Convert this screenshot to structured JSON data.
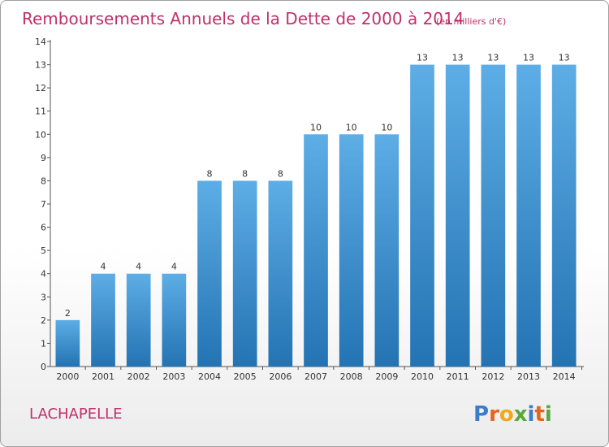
{
  "chart_data": {
    "type": "bar",
    "title": "Remboursements Annuels de la Dette de 2000 à 2014",
    "subtitle": "(en milliers d'€)",
    "categories": [
      "2000",
      "2001",
      "2002",
      "2003",
      "2004",
      "2005",
      "2006",
      "2007",
      "2008",
      "2009",
      "2010",
      "2011",
      "2012",
      "2013",
      "2014"
    ],
    "values": [
      2,
      4,
      4,
      4,
      8,
      8,
      8,
      10,
      10,
      10,
      13,
      13,
      13,
      13,
      13
    ],
    "data_labels": [
      "2",
      "4",
      "4",
      "4",
      "8",
      "8",
      "8",
      "10",
      "10",
      "10",
      "13",
      "13",
      "13",
      "13",
      "13"
    ],
    "y_ticks": [
      "0",
      "1",
      "2",
      "3",
      "4",
      "5",
      "6",
      "7",
      "8",
      "9",
      "10",
      "11",
      "12",
      "13",
      "14"
    ],
    "ylim": [
      0,
      14
    ],
    "xlabel": "",
    "ylabel": "",
    "grid": false,
    "legend": "none",
    "colors": {
      "bar_light": "#5dade6",
      "bar_dark": "#2473b3",
      "accent": "#c0306a",
      "axis": "#555555"
    }
  },
  "place_name": "LACHAPELLE",
  "logo": {
    "text": "Proxiti",
    "letters": [
      {
        "ch": "P",
        "color": "#3d7cc9"
      },
      {
        "ch": "r",
        "color": "#e8631e"
      },
      {
        "ch": "o",
        "color": "#f2a81d"
      },
      {
        "ch": "x",
        "color": "#5aa83c"
      },
      {
        "ch": "i",
        "color": "#3d7cc9"
      },
      {
        "ch": "t",
        "color": "#e8631e"
      },
      {
        "ch": "i",
        "color": "#5aa83c"
      }
    ]
  }
}
